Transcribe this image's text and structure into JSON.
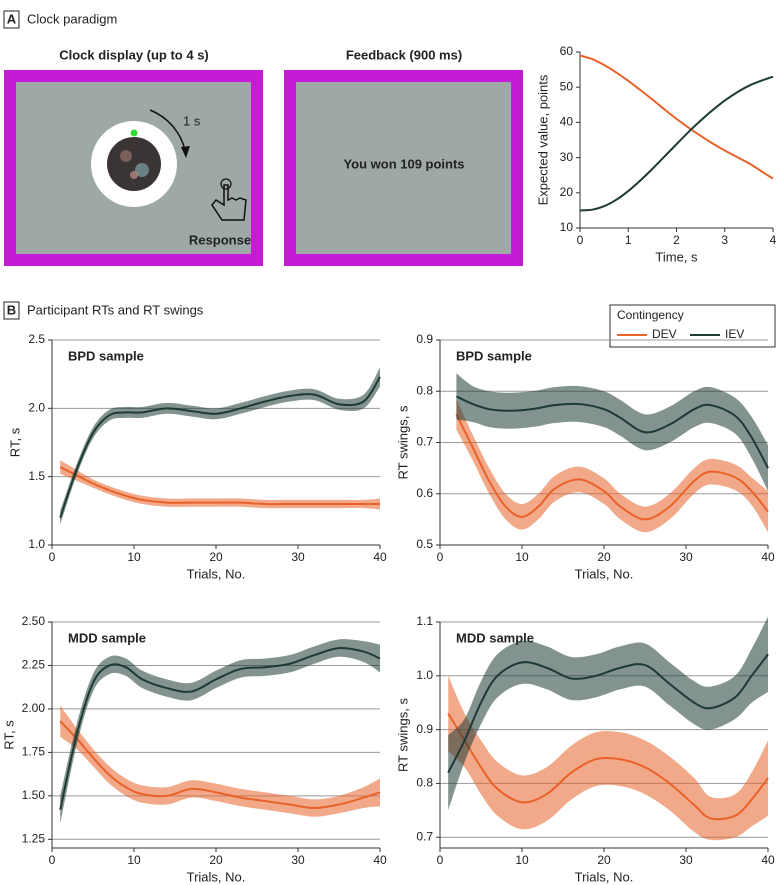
{
  "panel_a": {
    "letter": "A",
    "title": "Clock paradigm",
    "clock_display": {
      "title": "Clock display (up to 4 s)",
      "time_label": "1 s",
      "response_label": "Response"
    },
    "feedback": {
      "title": "Feedback (900 ms)",
      "message": "You won 109 points"
    }
  },
  "panel_b": {
    "letter": "B",
    "title": "Participant RTs and RT swings"
  },
  "legend": {
    "title": "Contingency"
  },
  "chart_data": [
    {
      "type": "line",
      "x_label": "Time, s",
      "y_label": "Expected value, points",
      "xlim": [
        0,
        4
      ],
      "xticks": [
        0,
        1,
        2,
        3,
        4
      ],
      "ylim": [
        10,
        60
      ],
      "yticks": [
        10,
        20,
        30,
        40,
        50,
        60
      ],
      "grid": false,
      "x": [
        0,
        0.25,
        0.5,
        0.75,
        1,
        1.25,
        1.5,
        1.75,
        2,
        2.25,
        2.5,
        2.75,
        3,
        3.25,
        3.5,
        3.75,
        4
      ],
      "series": [
        {
          "color": "#e8622a",
          "values": [
            59,
            58,
            56.3,
            54.2,
            51.8,
            49.2,
            46.5,
            43.7,
            41,
            38.5,
            36.2,
            34,
            32,
            30.2,
            28.4,
            26.2,
            24
          ]
        },
        {
          "color": "#1e3a34",
          "values": [
            15,
            15.2,
            16.2,
            18,
            20.5,
            23.5,
            26.8,
            30.3,
            33.8,
            37.3,
            40.5,
            43.5,
            46.2,
            48.5,
            50.4,
            51.8,
            53
          ]
        }
      ]
    },
    {
      "type": "line",
      "title": "BPD sample",
      "x_label": "Trials, No.",
      "y_label": "RT, s",
      "xlim": [
        0,
        40
      ],
      "xticks": [
        0,
        10,
        20,
        30,
        40
      ],
      "ylim": [
        1,
        2.5
      ],
      "yticks": [
        {
          "value": 1,
          "label": "1.0"
        },
        1.5,
        {
          "value": 2,
          "label": "2.0"
        },
        2.5
      ],
      "grid": true,
      "x": [
        1,
        3,
        5,
        7,
        9,
        11,
        14,
        17,
        20,
        23,
        26,
        29,
        32,
        35,
        38,
        40
      ],
      "series": [
        {
          "name": "DEV",
          "color": "#e8622a",
          "values": [
            1.57,
            1.51,
            1.45,
            1.4,
            1.36,
            1.33,
            1.31,
            1.31,
            1.31,
            1.31,
            1.3,
            1.3,
            1.3,
            1.3,
            1.3,
            1.3
          ],
          "lower": [
            1.52,
            1.47,
            1.42,
            1.37,
            1.33,
            1.3,
            1.28,
            1.28,
            1.28,
            1.28,
            1.27,
            1.27,
            1.27,
            1.27,
            1.27,
            1.26
          ],
          "upper": [
            1.62,
            1.55,
            1.48,
            1.43,
            1.39,
            1.36,
            1.34,
            1.34,
            1.34,
            1.34,
            1.33,
            1.33,
            1.33,
            1.33,
            1.33,
            1.34
          ]
        },
        {
          "name": "IEV",
          "color": "#1e3a34",
          "values": [
            1.2,
            1.55,
            1.82,
            1.95,
            1.97,
            1.97,
            2,
            1.98,
            1.96,
            2,
            2.05,
            2.09,
            2.1,
            2.03,
            2.05,
            2.23
          ],
          "lower": [
            1.15,
            1.51,
            1.78,
            1.91,
            1.93,
            1.93,
            1.96,
            1.94,
            1.92,
            1.96,
            2.01,
            2.05,
            2.06,
            1.99,
            2.0,
            2.16
          ],
          "upper": [
            1.25,
            1.59,
            1.86,
            1.99,
            2.01,
            2.01,
            2.04,
            2.02,
            2.0,
            2.04,
            2.09,
            2.13,
            2.14,
            2.07,
            2.1,
            2.3
          ]
        }
      ]
    },
    {
      "type": "line",
      "title": "BPD sample",
      "x_label": "Trials, No.",
      "y_label": "RT swings, s",
      "xlim": [
        0,
        40
      ],
      "xticks": [
        0,
        10,
        20,
        30,
        40
      ],
      "ylim": [
        0.5,
        0.9
      ],
      "yticks": [
        0.5,
        0.6,
        0.7,
        0.8,
        0.9
      ],
      "grid": true,
      "x": [
        2,
        4,
        6,
        8,
        10,
        12,
        14,
        17,
        20,
        22,
        25,
        28,
        31,
        33,
        36,
        38,
        40
      ],
      "series": [
        {
          "name": "DEV",
          "color": "#e8622a",
          "values": [
            0.755,
            0.69,
            0.625,
            0.575,
            0.555,
            0.575,
            0.61,
            0.628,
            0.605,
            0.575,
            0.55,
            0.575,
            0.625,
            0.643,
            0.632,
            0.605,
            0.565
          ],
          "lower": [
            0.725,
            0.665,
            0.6,
            0.55,
            0.53,
            0.55,
            0.585,
            0.603,
            0.58,
            0.55,
            0.525,
            0.55,
            0.6,
            0.618,
            0.607,
            0.578,
            0.525
          ],
          "upper": [
            0.785,
            0.715,
            0.65,
            0.6,
            0.58,
            0.6,
            0.635,
            0.653,
            0.63,
            0.6,
            0.575,
            0.6,
            0.65,
            0.668,
            0.657,
            0.632,
            0.605
          ]
        },
        {
          "name": "IEV",
          "color": "#1e3a34",
          "values": [
            0.79,
            0.775,
            0.765,
            0.762,
            0.763,
            0.767,
            0.773,
            0.775,
            0.765,
            0.748,
            0.72,
            0.735,
            0.765,
            0.773,
            0.752,
            0.71,
            0.65
          ],
          "lower": [
            0.745,
            0.74,
            0.73,
            0.727,
            0.728,
            0.732,
            0.738,
            0.74,
            0.73,
            0.713,
            0.685,
            0.7,
            0.73,
            0.738,
            0.717,
            0.67,
            0.605
          ],
          "upper": [
            0.835,
            0.81,
            0.8,
            0.797,
            0.798,
            0.802,
            0.808,
            0.81,
            0.8,
            0.783,
            0.755,
            0.77,
            0.8,
            0.808,
            0.787,
            0.75,
            0.695
          ]
        }
      ]
    },
    {
      "type": "line",
      "title": "MDD sample",
      "x_label": "Trials, No.",
      "y_label": "RT, s",
      "xlim": [
        0,
        40
      ],
      "xticks": [
        0,
        10,
        20,
        30,
        40
      ],
      "ylim": [
        1.2,
        2.5
      ],
      "yticks": [
        1.25,
        {
          "value": 1.5,
          "label": "1.50"
        },
        1.75,
        {
          "value": 2,
          "label": "2.00"
        },
        2.25,
        {
          "value": 2.5,
          "label": "2.50"
        }
      ],
      "grid": true,
      "x": [
        1,
        3,
        5,
        7,
        9,
        11,
        14,
        17,
        20,
        23,
        26,
        29,
        32,
        35,
        38,
        40
      ],
      "series": [
        {
          "name": "DEV",
          "color": "#e8622a",
          "values": [
            1.93,
            1.83,
            1.72,
            1.62,
            1.55,
            1.51,
            1.5,
            1.54,
            1.52,
            1.49,
            1.47,
            1.45,
            1.43,
            1.45,
            1.49,
            1.52
          ],
          "lower": [
            1.84,
            1.77,
            1.67,
            1.57,
            1.5,
            1.46,
            1.45,
            1.49,
            1.47,
            1.44,
            1.42,
            1.4,
            1.38,
            1.4,
            1.43,
            1.44
          ],
          "upper": [
            2.02,
            1.89,
            1.77,
            1.67,
            1.6,
            1.56,
            1.55,
            1.59,
            1.57,
            1.54,
            1.52,
            1.5,
            1.48,
            1.5,
            1.55,
            1.6
          ]
        },
        {
          "name": "IEV",
          "color": "#1e3a34",
          "values": [
            1.42,
            1.85,
            2.15,
            2.25,
            2.24,
            2.17,
            2.12,
            2.1,
            2.17,
            2.23,
            2.24,
            2.26,
            2.31,
            2.35,
            2.33,
            2.29
          ],
          "lower": [
            1.34,
            1.79,
            2.1,
            2.2,
            2.19,
            2.12,
            2.07,
            2.05,
            2.12,
            2.18,
            2.19,
            2.21,
            2.26,
            2.3,
            2.27,
            2.21
          ],
          "upper": [
            1.5,
            1.91,
            2.2,
            2.3,
            2.29,
            2.22,
            2.17,
            2.15,
            2.22,
            2.28,
            2.29,
            2.31,
            2.36,
            2.4,
            2.39,
            2.37
          ]
        }
      ]
    },
    {
      "type": "line",
      "title": "MDD sample",
      "x_label": "Trials, No.",
      "y_label": "RT swings, s",
      "xlim": [
        0,
        40
      ],
      "xticks": [
        0,
        10,
        20,
        30,
        40
      ],
      "ylim": [
        0.68,
        1.1
      ],
      "yticks": [
        0.7,
        0.8,
        0.9,
        {
          "value": 1,
          "label": "1.0"
        },
        1.1
      ],
      "grid": true,
      "x": [
        1,
        3,
        5,
        7,
        10,
        13,
        16,
        19,
        22,
        25,
        28,
        31,
        33,
        36,
        38,
        40
      ],
      "series": [
        {
          "name": "DEV",
          "color": "#e8622a",
          "values": [
            0.93,
            0.88,
            0.83,
            0.79,
            0.765,
            0.78,
            0.82,
            0.845,
            0.845,
            0.83,
            0.8,
            0.76,
            0.735,
            0.74,
            0.77,
            0.81
          ],
          "lower": [
            0.86,
            0.83,
            0.78,
            0.74,
            0.715,
            0.73,
            0.77,
            0.795,
            0.795,
            0.78,
            0.75,
            0.71,
            0.695,
            0.7,
            0.72,
            0.74
          ],
          "upper": [
            1.0,
            0.93,
            0.88,
            0.84,
            0.815,
            0.83,
            0.87,
            0.895,
            0.895,
            0.88,
            0.85,
            0.81,
            0.775,
            0.78,
            0.82,
            0.88
          ]
        },
        {
          "name": "IEV",
          "color": "#1e3a34",
          "values": [
            0.82,
            0.88,
            0.95,
            1.0,
            1.025,
            1.015,
            0.995,
            1.0,
            1.015,
            1.02,
            0.985,
            0.95,
            0.94,
            0.96,
            1.0,
            1.04
          ],
          "lower": [
            0.75,
            0.84,
            0.91,
            0.96,
            0.985,
            0.975,
            0.955,
            0.96,
            0.975,
            0.98,
            0.945,
            0.91,
            0.9,
            0.92,
            0.95,
            0.97
          ],
          "upper": [
            0.89,
            0.92,
            0.99,
            1.04,
            1.065,
            1.055,
            1.035,
            1.04,
            1.055,
            1.06,
            1.025,
            0.99,
            0.98,
            1.0,
            1.05,
            1.11
          ]
        }
      ]
    }
  ]
}
